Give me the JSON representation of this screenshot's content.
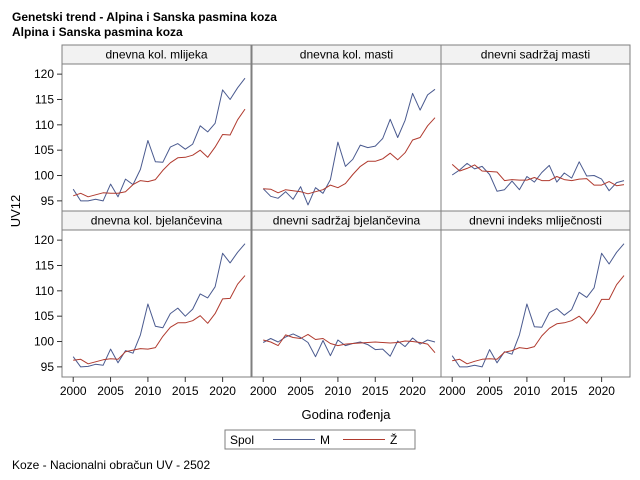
{
  "title": "Genetski trend - Alpina i Sanska pasmina koza",
  "subtitle": "Alpina i Sanska pasmina koza",
  "footnote": "Koze - Nacionalni obračun UV - 2502",
  "colors": {
    "M": "#4a5a8f",
    "Z": "#b03a2e",
    "header_bg": "#f2f2f2",
    "border": "#7f7f7f"
  },
  "chart_data": {
    "type": "line",
    "layout": "2x3 panel grid",
    "xlabel": "Godina rođenja",
    "ylabel": "UV12",
    "xlim": [
      1998.5,
      2023.8
    ],
    "ylim": [
      93,
      122
    ],
    "x_ticks": [
      2000,
      2005,
      2010,
      2015,
      2020
    ],
    "y_ticks": [
      95,
      100,
      105,
      110,
      115,
      120
    ],
    "legend": {
      "title": "Spol",
      "entries": [
        "M",
        "Ž"
      ],
      "position": "bottom-center"
    },
    "x": [
      2000,
      2001,
      2002,
      2003,
      2004,
      2005,
      2006,
      2007,
      2008,
      2009,
      2010,
      2011,
      2012,
      2013,
      2014,
      2015,
      2016,
      2017,
      2018,
      2019,
      2020,
      2021,
      2022,
      2023
    ],
    "panels": [
      {
        "name": "dnevna kol. mlijeka",
        "series": [
          {
            "name": "M",
            "values": [
              97.3,
              95.0,
              95.0,
              95.3,
              95.0,
              98.3,
              95.8,
              99.3,
              98.2,
              101.2,
              106.9,
              102.7,
              102.6,
              105.6,
              106.3,
              105.2,
              106.2,
              109.8,
              108.6,
              110.3,
              116.9,
              115.0,
              117.3,
              119.2
            ]
          },
          {
            "name": "Ž",
            "values": [
              96.0,
              96.5,
              95.8,
              96.2,
              96.6,
              96.5,
              96.5,
              96.8,
              98.2,
              99.0,
              98.8,
              99.2,
              101.0,
              102.5,
              103.5,
              103.6,
              104.0,
              105.0,
              103.6,
              105.6,
              108.1,
              108.0,
              111.0,
              113.1
            ]
          }
        ]
      },
      {
        "name": "dnevna kol. masti",
        "series": [
          {
            "name": "M",
            "values": [
              97.4,
              95.9,
              95.5,
              96.8,
              95.3,
              97.8,
              94.2,
              97.6,
              96.5,
              99.2,
              106.6,
              101.8,
              103.2,
              106.0,
              105.5,
              105.8,
              107.3,
              111.1,
              107.5,
              110.9,
              116.2,
              112.9,
              115.9,
              117.0
            ]
          },
          {
            "name": "Ž",
            "values": [
              97.4,
              97.3,
              96.6,
              97.2,
              97.0,
              96.8,
              96.4,
              96.8,
              97.2,
              98.1,
              97.6,
              98.4,
              100.2,
              101.8,
              102.8,
              102.8,
              103.3,
              104.4,
              103.1,
              104.5,
              107.0,
              107.5,
              109.8,
              111.4
            ]
          }
        ]
      },
      {
        "name": "dnevni sadržaj masti",
        "series": [
          {
            "name": "M",
            "values": [
              100.1,
              101.1,
              102.4,
              101.3,
              101.8,
              100.2,
              96.9,
              97.2,
              98.9,
              97.2,
              99.8,
              98.7,
              100.6,
              102.0,
              98.7,
              100.5,
              99.5,
              102.7,
              99.9,
              100.0,
              99.3,
              97.0,
              98.6,
              99.0
            ]
          },
          {
            "name": "Ž",
            "values": [
              102.2,
              100.9,
              101.4,
              102.1,
              100.9,
              100.8,
              100.7,
              99.0,
              99.2,
              99.1,
              99.1,
              99.6,
              99.0,
              99.0,
              99.8,
              99.2,
              99.0,
              99.3,
              99.4,
              98.1,
              98.1,
              98.8,
              98.0,
              98.2
            ]
          }
        ]
      },
      {
        "name": "dnevna kol. bjelančevina",
        "series": [
          {
            "name": "M",
            "values": [
              97.0,
              95.0,
              95.1,
              95.5,
              95.3,
              98.5,
              95.8,
              98.2,
              97.7,
              101.3,
              107.4,
              103.0,
              102.7,
              105.5,
              106.6,
              105.0,
              106.4,
              109.4,
              108.6,
              110.8,
              117.4,
              115.5,
              117.6,
              119.3
            ]
          },
          {
            "name": "Ž",
            "values": [
              96.3,
              96.5,
              95.6,
              96.0,
              96.4,
              96.6,
              96.5,
              98.0,
              98.3,
              98.6,
              98.5,
              98.8,
              101.0,
              102.8,
              103.7,
              103.7,
              104.1,
              105.1,
              103.6,
              105.5,
              108.4,
              108.5,
              111.3,
              113.0
            ]
          }
        ]
      },
      {
        "name": "dnevni sadržaj bjelančevina",
        "series": [
          {
            "name": "M",
            "values": [
              99.8,
              100.6,
              99.9,
              100.9,
              101.5,
              100.8,
              99.8,
              97.0,
              100.2,
              97.2,
              100.3,
              99.2,
              99.6,
              99.9,
              99.4,
              98.4,
              98.5,
              97.1,
              100.1,
              99.0,
              100.7,
              99.5,
              100.3,
              99.9
            ]
          },
          {
            "name": "Ž",
            "values": [
              100.3,
              99.9,
              99.2,
              101.3,
              100.8,
              100.6,
              101.4,
              100.4,
              100.6,
              99.6,
              99.2,
              99.5,
              99.6,
              99.7,
              99.8,
              99.9,
              99.8,
              99.7,
              99.8,
              100.1,
              100.0,
              99.8,
              99.5,
              97.8
            ]
          }
        ]
      },
      {
        "name": "dnevni indeks mliječnosti",
        "series": [
          {
            "name": "M",
            "values": [
              97.2,
              95.0,
              95.0,
              95.3,
              95.0,
              98.4,
              95.8,
              98.0,
              97.5,
              101.3,
              107.4,
              102.9,
              102.8,
              105.7,
              106.5,
              105.2,
              106.3,
              109.7,
              108.7,
              110.6,
              117.4,
              115.3,
              117.6,
              119.3
            ]
          },
          {
            "name": "Ž",
            "values": [
              96.2,
              96.5,
              95.6,
              96.1,
              96.5,
              96.6,
              96.5,
              97.9,
              98.2,
              98.8,
              98.6,
              99.0,
              101.1,
              102.6,
              103.5,
              103.7,
              104.1,
              105.0,
              103.6,
              105.5,
              108.3,
              108.3,
              111.2,
              113.0
            ]
          }
        ]
      }
    ]
  }
}
